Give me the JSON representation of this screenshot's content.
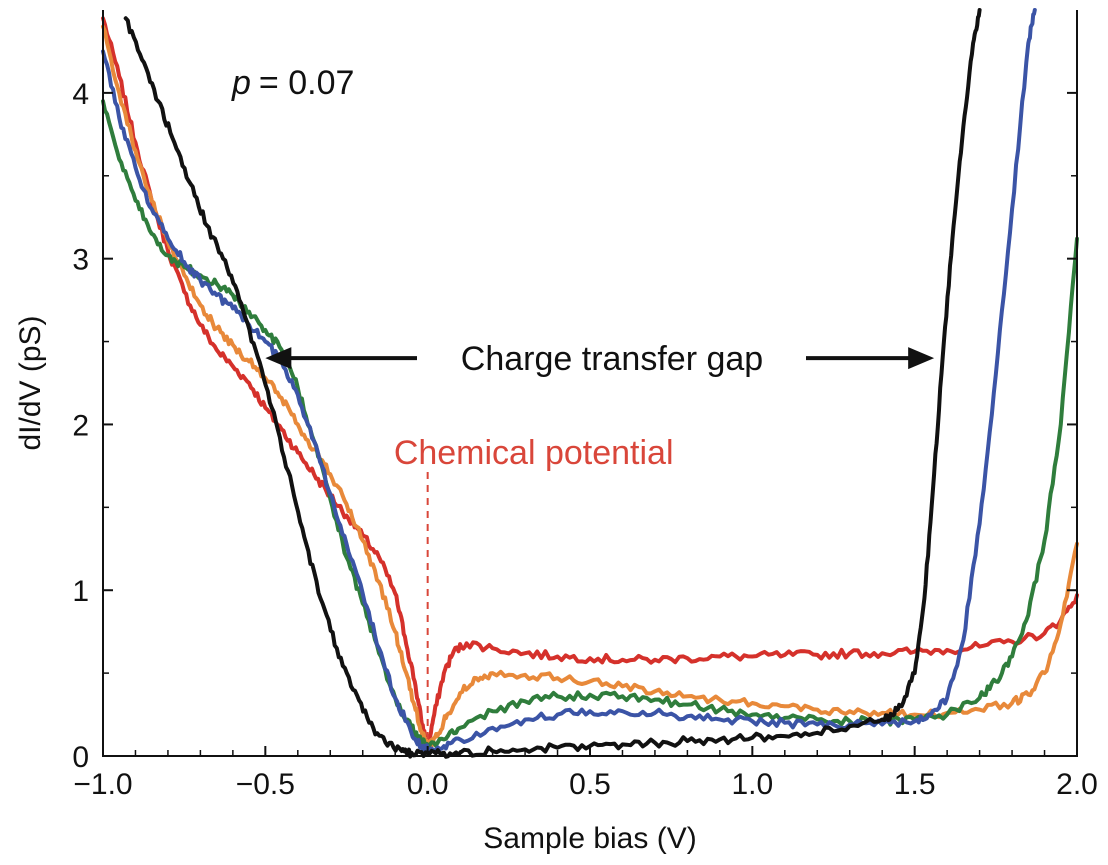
{
  "chart_data": {
    "type": "line",
    "title": "",
    "xlabel": "Sample bias (V)",
    "ylabel": "dI/dV (pS)",
    "xlim": [
      -1.0,
      2.0
    ],
    "ylim": [
      0,
      4.5
    ],
    "x_ticks": [
      -1.0,
      -0.5,
      0.0,
      0.5,
      1.0,
      1.5,
      2.0
    ],
    "x_tick_labels": [
      "−1.0",
      "−0.5",
      "0.0",
      "0.5",
      "1.0",
      "1.5",
      "2.0"
    ],
    "y_ticks": [
      0,
      1,
      2,
      3,
      4
    ],
    "y_tick_labels": [
      "0",
      "1",
      "2",
      "3",
      "4"
    ],
    "grid": false,
    "annotations": {
      "doping": "p = 0.07",
      "doping_variable": "p",
      "doping_value": "= 0.07",
      "gap_label": "Charge transfer gap",
      "gap_from_x": -0.5,
      "gap_to_x": 1.56,
      "gap_y": 2.4,
      "chemical_potential_label": "Chemical potential",
      "chemical_potential_x": 0.0,
      "chemical_potential_color": "#d9463a"
    },
    "series": [
      {
        "name": "red",
        "color": "#d5312b",
        "x": [
          -1.0,
          -0.95,
          -0.9,
          -0.85,
          -0.8,
          -0.75,
          -0.7,
          -0.65,
          -0.6,
          -0.55,
          -0.5,
          -0.45,
          -0.4,
          -0.35,
          -0.3,
          -0.25,
          -0.2,
          -0.15,
          -0.1,
          -0.07,
          -0.04,
          -0.02,
          0.0,
          0.02,
          0.05,
          0.08,
          0.12,
          0.2,
          0.3,
          0.4,
          0.5,
          0.6,
          0.7,
          0.8,
          0.9,
          1.0,
          1.1,
          1.2,
          1.3,
          1.4,
          1.5,
          1.6,
          1.7,
          1.8,
          1.9,
          1.95,
          2.0
        ],
        "y": [
          4.45,
          4.1,
          3.7,
          3.35,
          3.05,
          2.8,
          2.6,
          2.45,
          2.35,
          2.25,
          2.1,
          1.97,
          1.83,
          1.7,
          1.57,
          1.45,
          1.33,
          1.2,
          0.98,
          0.72,
          0.45,
          0.22,
          0.05,
          0.25,
          0.5,
          0.63,
          0.68,
          0.65,
          0.62,
          0.6,
          0.59,
          0.58,
          0.58,
          0.59,
          0.6,
          0.6,
          0.61,
          0.61,
          0.62,
          0.62,
          0.63,
          0.64,
          0.66,
          0.69,
          0.74,
          0.82,
          0.97
        ]
      },
      {
        "name": "orange",
        "color": "#e8893a",
        "x": [
          -1.0,
          -0.95,
          -0.9,
          -0.85,
          -0.8,
          -0.75,
          -0.7,
          -0.65,
          -0.6,
          -0.55,
          -0.5,
          -0.45,
          -0.4,
          -0.35,
          -0.3,
          -0.25,
          -0.2,
          -0.15,
          -0.1,
          -0.07,
          -0.04,
          -0.02,
          0.0,
          0.03,
          0.06,
          0.1,
          0.15,
          0.2,
          0.3,
          0.4,
          0.5,
          0.6,
          0.7,
          0.8,
          0.9,
          1.0,
          1.1,
          1.2,
          1.3,
          1.4,
          1.5,
          1.6,
          1.7,
          1.8,
          1.85,
          1.9,
          1.95,
          2.0
        ],
        "y": [
          4.4,
          4.0,
          3.65,
          3.35,
          3.1,
          2.9,
          2.72,
          2.58,
          2.48,
          2.38,
          2.28,
          2.16,
          2.0,
          1.85,
          1.7,
          1.52,
          1.3,
          1.05,
          0.75,
          0.52,
          0.3,
          0.15,
          0.06,
          0.12,
          0.25,
          0.38,
          0.47,
          0.5,
          0.49,
          0.47,
          0.45,
          0.42,
          0.39,
          0.36,
          0.34,
          0.32,
          0.3,
          0.28,
          0.27,
          0.26,
          0.25,
          0.26,
          0.28,
          0.32,
          0.37,
          0.5,
          0.8,
          1.28
        ]
      },
      {
        "name": "green",
        "color": "#2f7d3c",
        "x": [
          -1.0,
          -0.95,
          -0.9,
          -0.85,
          -0.8,
          -0.75,
          -0.7,
          -0.65,
          -0.6,
          -0.55,
          -0.5,
          -0.45,
          -0.4,
          -0.35,
          -0.3,
          -0.25,
          -0.2,
          -0.15,
          -0.1,
          -0.05,
          -0.02,
          0.0,
          0.05,
          0.1,
          0.2,
          0.3,
          0.4,
          0.5,
          0.6,
          0.7,
          0.8,
          0.9,
          1.0,
          1.1,
          1.2,
          1.3,
          1.4,
          1.5,
          1.6,
          1.7,
          1.75,
          1.8,
          1.85,
          1.9,
          1.95,
          2.0
        ],
        "y": [
          3.95,
          3.6,
          3.35,
          3.15,
          3.02,
          2.95,
          2.9,
          2.85,
          2.78,
          2.68,
          2.57,
          2.45,
          2.22,
          1.9,
          1.55,
          1.2,
          0.92,
          0.62,
          0.35,
          0.17,
          0.09,
          0.06,
          0.1,
          0.17,
          0.27,
          0.33,
          0.36,
          0.37,
          0.36,
          0.34,
          0.31,
          0.28,
          0.25,
          0.23,
          0.22,
          0.21,
          0.21,
          0.22,
          0.25,
          0.35,
          0.45,
          0.6,
          0.85,
          1.3,
          2.0,
          3.12
        ]
      },
      {
        "name": "blue",
        "color": "#3b54a6",
        "x": [
          -1.0,
          -0.95,
          -0.9,
          -0.85,
          -0.8,
          -0.75,
          -0.7,
          -0.65,
          -0.6,
          -0.55,
          -0.5,
          -0.45,
          -0.4,
          -0.35,
          -0.3,
          -0.25,
          -0.2,
          -0.15,
          -0.1,
          -0.05,
          -0.02,
          0.0,
          0.05,
          0.1,
          0.2,
          0.3,
          0.4,
          0.5,
          0.6,
          0.7,
          0.8,
          0.9,
          1.0,
          1.1,
          1.2,
          1.3,
          1.4,
          1.5,
          1.55,
          1.6,
          1.65,
          1.7,
          1.75,
          1.8,
          1.85,
          1.87
        ],
        "y": [
          4.25,
          3.85,
          3.55,
          3.3,
          3.12,
          2.98,
          2.87,
          2.78,
          2.7,
          2.6,
          2.5,
          2.38,
          2.18,
          1.9,
          1.58,
          1.28,
          0.98,
          0.65,
          0.35,
          0.14,
          0.06,
          0.04,
          0.06,
          0.1,
          0.17,
          0.22,
          0.25,
          0.27,
          0.27,
          0.26,
          0.24,
          0.22,
          0.21,
          0.2,
          0.19,
          0.19,
          0.19,
          0.21,
          0.25,
          0.35,
          0.7,
          1.4,
          2.3,
          3.3,
          4.3,
          4.5
        ]
      },
      {
        "name": "black",
        "color": "#111111",
        "x": [
          -0.93,
          -0.88,
          -0.83,
          -0.78,
          -0.73,
          -0.68,
          -0.63,
          -0.58,
          -0.53,
          -0.48,
          -0.43,
          -0.38,
          -0.33,
          -0.28,
          -0.23,
          -0.18,
          -0.13,
          -0.08,
          -0.05,
          0.0,
          0.05,
          0.1,
          0.2,
          0.3,
          0.4,
          0.5,
          0.6,
          0.7,
          0.8,
          0.9,
          1.0,
          1.1,
          1.2,
          1.3,
          1.4,
          1.43,
          1.46,
          1.5,
          1.53,
          1.56,
          1.59,
          1.62,
          1.65,
          1.68,
          1.7
        ],
        "y": [
          4.45,
          4.2,
          3.95,
          3.7,
          3.45,
          3.2,
          3.0,
          2.75,
          2.45,
          2.1,
          1.72,
          1.32,
          0.95,
          0.65,
          0.4,
          0.2,
          0.08,
          0.03,
          0.02,
          0.02,
          0.02,
          0.02,
          0.03,
          0.04,
          0.05,
          0.06,
          0.07,
          0.08,
          0.09,
          0.1,
          0.11,
          0.12,
          0.14,
          0.18,
          0.22,
          0.25,
          0.3,
          0.5,
          0.95,
          1.7,
          2.5,
          3.2,
          3.8,
          4.3,
          4.5
        ]
      }
    ]
  }
}
